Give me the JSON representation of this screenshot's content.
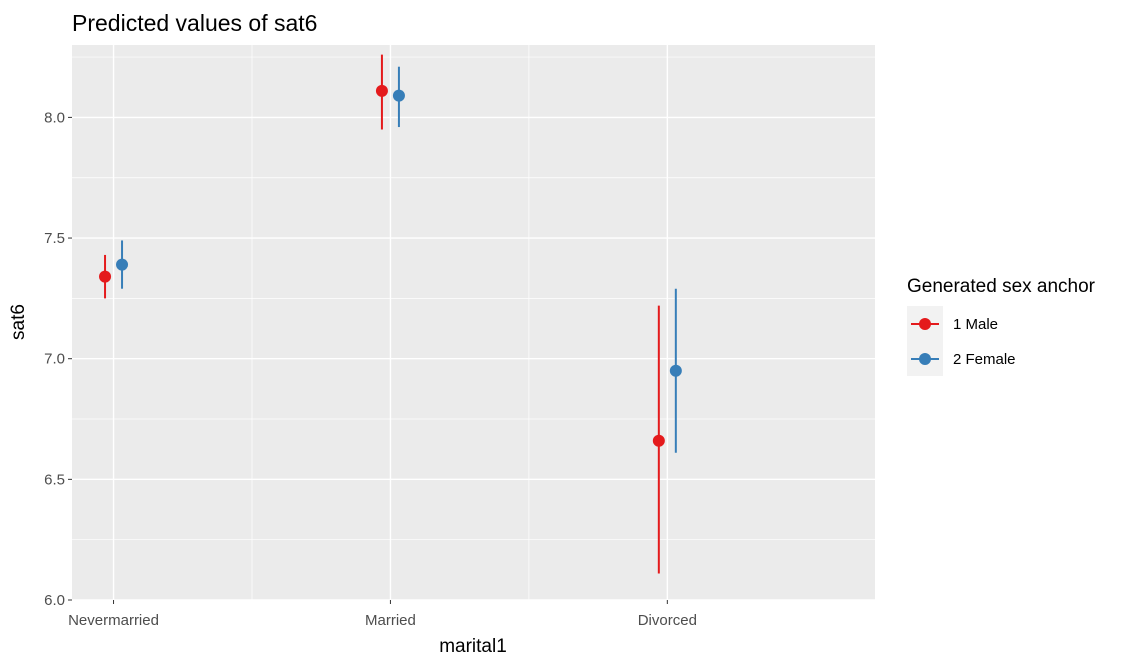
{
  "chart_data": {
    "type": "scatter",
    "title": "Predicted values of sat6",
    "xlabel": "marital1",
    "ylabel": "sat6",
    "categories": [
      "Nevermarried",
      "Married",
      "Divorced"
    ],
    "ylim": [
      6.0,
      8.3
    ],
    "yticks": [
      "6.0",
      "6.5",
      "7.0",
      "7.5",
      "8.0"
    ],
    "grid": true,
    "legend": {
      "title": "Generated sex anchor",
      "position": "right"
    },
    "series": [
      {
        "name": "1 Male",
        "color": "#e41a1c",
        "values": [
          7.34,
          8.11,
          6.66
        ],
        "lower": [
          7.25,
          7.95,
          6.11
        ],
        "upper": [
          7.43,
          8.26,
          7.22
        ]
      },
      {
        "name": "2 Female",
        "color": "#377eb8",
        "values": [
          7.39,
          8.09,
          6.95
        ],
        "lower": [
          7.29,
          7.96,
          6.61
        ],
        "upper": [
          7.49,
          8.21,
          7.29
        ]
      }
    ]
  }
}
